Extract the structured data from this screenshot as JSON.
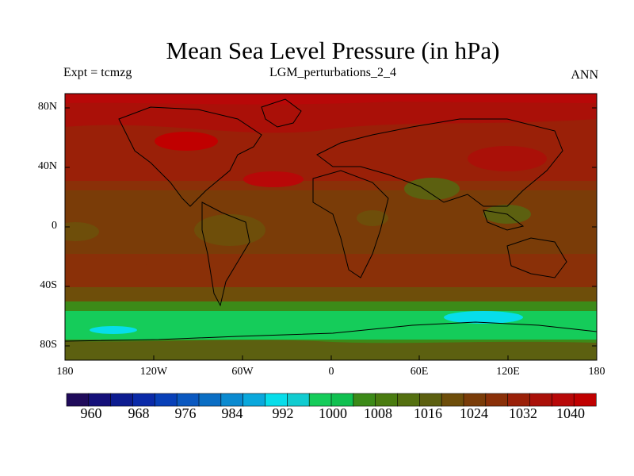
{
  "title": "Mean Sea Level Pressure (in hPa)",
  "subtitle_left": "Expt = tcmzg",
  "subtitle_center": "LGM_perturbations_2_4",
  "subtitle_right": "ANN",
  "lat_labels": [
    "80N",
    "40N",
    "0",
    "40S",
    "80S"
  ],
  "lon_labels": [
    "180",
    "120W",
    "60W",
    "0",
    "60E",
    "120E",
    "180"
  ],
  "colorbar": {
    "colors": [
      "#1f0a5a",
      "#15107a",
      "#0d1c90",
      "#0a2aa8",
      "#0840b8",
      "#0a58c0",
      "#0b6ec4",
      "#0a8ad0",
      "#0aa8dc",
      "#07ddea",
      "#11ccd0",
      "#15cc5a",
      "#10c050",
      "#3c8a18",
      "#4a7c10",
      "#547010",
      "#5c6010",
      "#6e4e0a",
      "#7a3c08",
      "#8a3008",
      "#9a2008",
      "#aa1008",
      "#b80808",
      "#c00000"
    ],
    "labels": [
      "960",
      "968",
      "976",
      "984",
      "992",
      "1000",
      "1008",
      "1016",
      "1024",
      "1032",
      "1040"
    ]
  }
}
